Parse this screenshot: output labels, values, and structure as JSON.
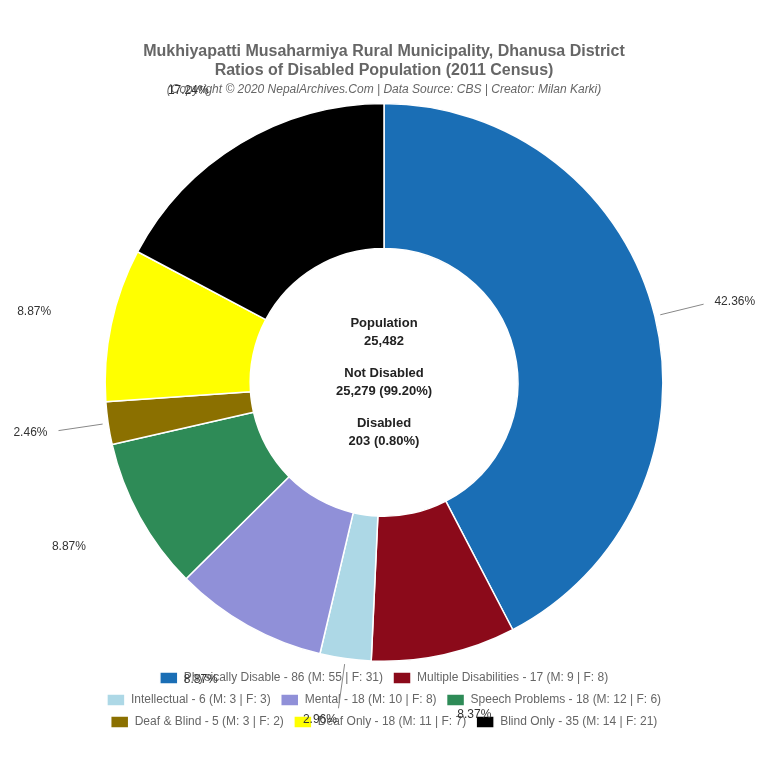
{
  "chart_data": {
    "type": "doughnut",
    "title": [
      "Mukhiyapatti Musaharmiya Rural Municipality, Dhanusa District",
      "Ratios of Disabled Population (2011 Census)"
    ],
    "subtitle": "(Copyright © 2020 NepalArchives.Com | Data Source: CBS | Creator: Milan Karki)",
    "categories": [
      "Physically Disable - 86 (M: 55 | F: 31)",
      "Multiple Disabilities - 17 (M: 9 | F: 8)",
      "Intellectual - 6 (M: 3 | F: 3)",
      "Mental - 18 (M: 10 | F: 8)",
      "Speech Problems - 18 (M: 12 | F: 6)",
      "Deaf & Blind - 5 (M: 3 | F: 2)",
      "Deaf Only - 18 (M: 11 | F: 7)",
      "Blind Only - 35 (M: 14 | F: 21)"
    ],
    "values": [
      42.36,
      8.37,
      2.96,
      8.87,
      8.87,
      2.46,
      8.87,
      17.24
    ],
    "value_labels": [
      "42.36%",
      "8.37%",
      "2.96%",
      "8.87%",
      "8.87%",
      "2.46%",
      "8.87%",
      "17.24%"
    ],
    "colors": [
      "#1a6eb5",
      "#8b0a1a",
      "#add8e6",
      "#9090d8",
      "#2e8b57",
      "#8b7000",
      "#ffff00",
      "#000000"
    ],
    "data_labels": true,
    "annotations": [
      [
        "Population",
        "25,482"
      ],
      [
        "Not Disabled",
        "25,279 (99.20%)"
      ],
      [
        "Disabled",
        "203 (0.80%)"
      ]
    ],
    "legend": "bottom"
  }
}
